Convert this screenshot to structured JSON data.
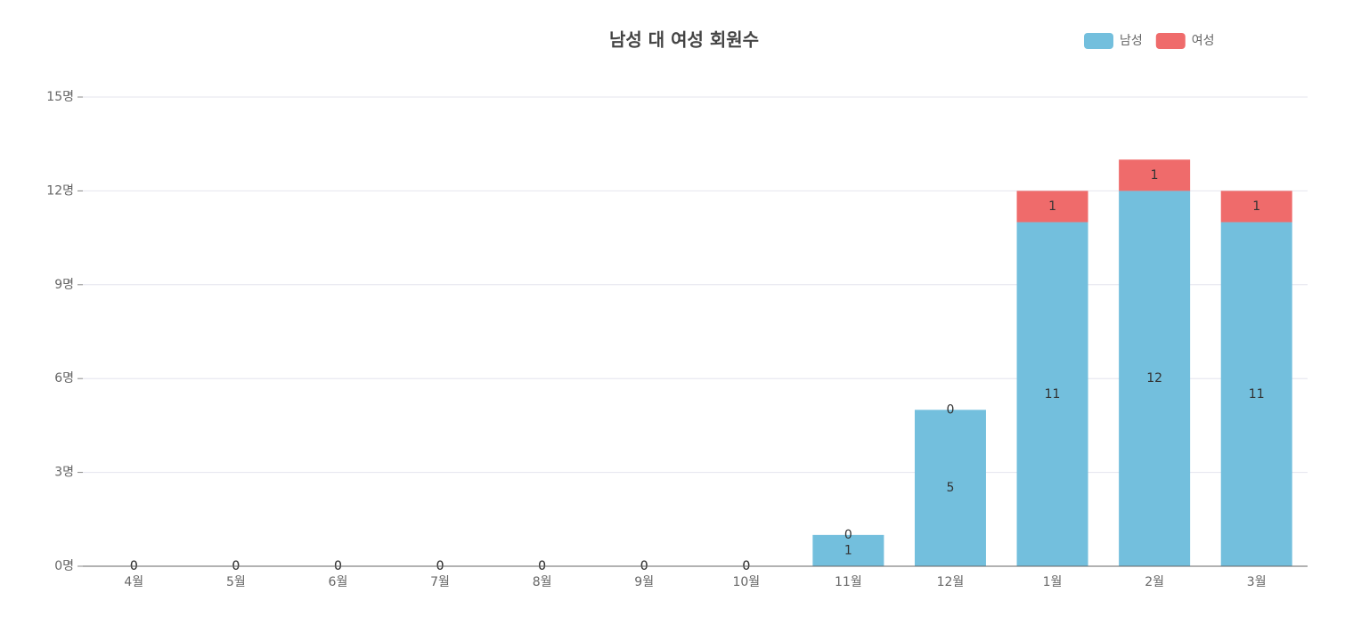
{
  "chart_data": {
    "type": "stacked-bar",
    "title": "남성 대 여성 회원수",
    "categories": [
      "4월",
      "5월",
      "6월",
      "7월",
      "8월",
      "9월",
      "10월",
      "11월",
      "12월",
      "1월",
      "2월",
      "3월"
    ],
    "series": [
      {
        "name": "남성",
        "color": "#73bfdd",
        "values": [
          0,
          0,
          0,
          0,
          0,
          0,
          0,
          1,
          5,
          11,
          12,
          11
        ]
      },
      {
        "name": "여성",
        "color": "#ef6b6b",
        "values": [
          0,
          0,
          0,
          0,
          0,
          0,
          0,
          0,
          0,
          1,
          1,
          1
        ]
      }
    ],
    "ylim": [
      0,
      15
    ],
    "yticks": [
      {
        "value": 0,
        "label": "0명"
      },
      {
        "value": 3,
        "label": "3명"
      },
      {
        "value": 6,
        "label": "6명"
      },
      {
        "value": 9,
        "label": "9명"
      },
      {
        "value": 12,
        "label": "12명"
      },
      {
        "value": 15,
        "label": "15명"
      }
    ],
    "grid": true,
    "legend": "top-right"
  }
}
